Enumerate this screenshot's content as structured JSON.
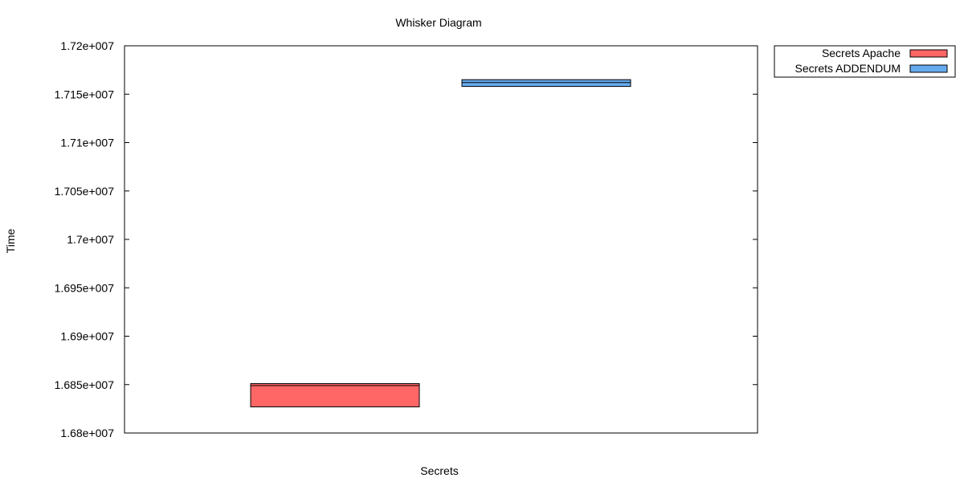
{
  "chart_data": {
    "type": "box",
    "title": "Whisker Diagram",
    "xlabel": "Secrets",
    "ylabel": "Time",
    "ylim": [
      16800000,
      17200000
    ],
    "yticks": [
      16800000,
      16850000,
      16900000,
      16950000,
      17000000,
      17050000,
      17100000,
      17150000,
      17200000
    ],
    "ytick_labels": [
      "1.68e+007",
      "1.685e+007",
      "1.69e+007",
      "1.695e+007",
      "1.7e+007",
      "1.705e+007",
      "1.71e+007",
      "1.715e+007",
      "1.72e+007"
    ],
    "grid": false,
    "legend_position": "outside-top-right",
    "series": [
      {
        "name": "Secrets Apache",
        "color": "#ff6666",
        "slot": 1,
        "min": 16827000,
        "q1": 16827000,
        "median": 16849000,
        "q3": 16851000,
        "max": 16851000
      },
      {
        "name": "Secrets ADDENDUM",
        "color": "#66aaee",
        "slot": 2,
        "min": 17158000,
        "q1": 17158000,
        "median": 17162000,
        "q3": 17165000,
        "max": 17165000
      }
    ]
  }
}
